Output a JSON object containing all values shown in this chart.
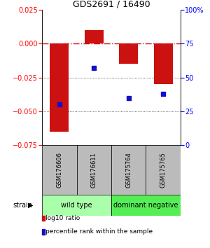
{
  "title": "GDS2691 / 16490",
  "samples": [
    "GSM176606",
    "GSM176611",
    "GSM175764",
    "GSM175765"
  ],
  "log10_ratio": [
    -0.065,
    0.01,
    -0.015,
    -0.03
  ],
  "percentile_rank": [
    30,
    57,
    35,
    38
  ],
  "left_ylim": [
    -0.075,
    0.025
  ],
  "right_ylim": [
    0,
    100
  ],
  "left_yticks": [
    -0.075,
    -0.05,
    -0.025,
    0,
    0.025
  ],
  "right_yticks": [
    0,
    25,
    50,
    75,
    100
  ],
  "right_yticklabels": [
    "0",
    "25",
    "50",
    "75",
    "100%"
  ],
  "bar_color": "#cc1111",
  "dot_color": "#1111cc",
  "bar_width": 0.55,
  "zero_line_color": "#cc1111",
  "dotted_line_color": "#333333",
  "hline_zero_style": "-.",
  "hline_dotted_style": ":",
  "groups": [
    {
      "label": "wild type",
      "samples": [
        0,
        1
      ],
      "color": "#aaffaa"
    },
    {
      "label": "dominant negative",
      "samples": [
        2,
        3
      ],
      "color": "#55ee55"
    }
  ],
  "group_label": "strain",
  "sample_box_color": "#bbbbbb",
  "legend_items": [
    {
      "color": "#cc1111",
      "label": "log10 ratio"
    },
    {
      "color": "#1111cc",
      "label": "percentile rank within the sample"
    }
  ],
  "title_fontsize": 9,
  "tick_fontsize": 7,
  "sample_fontsize": 6,
  "group_fontsize": 7,
  "legend_fontsize": 6.5
}
